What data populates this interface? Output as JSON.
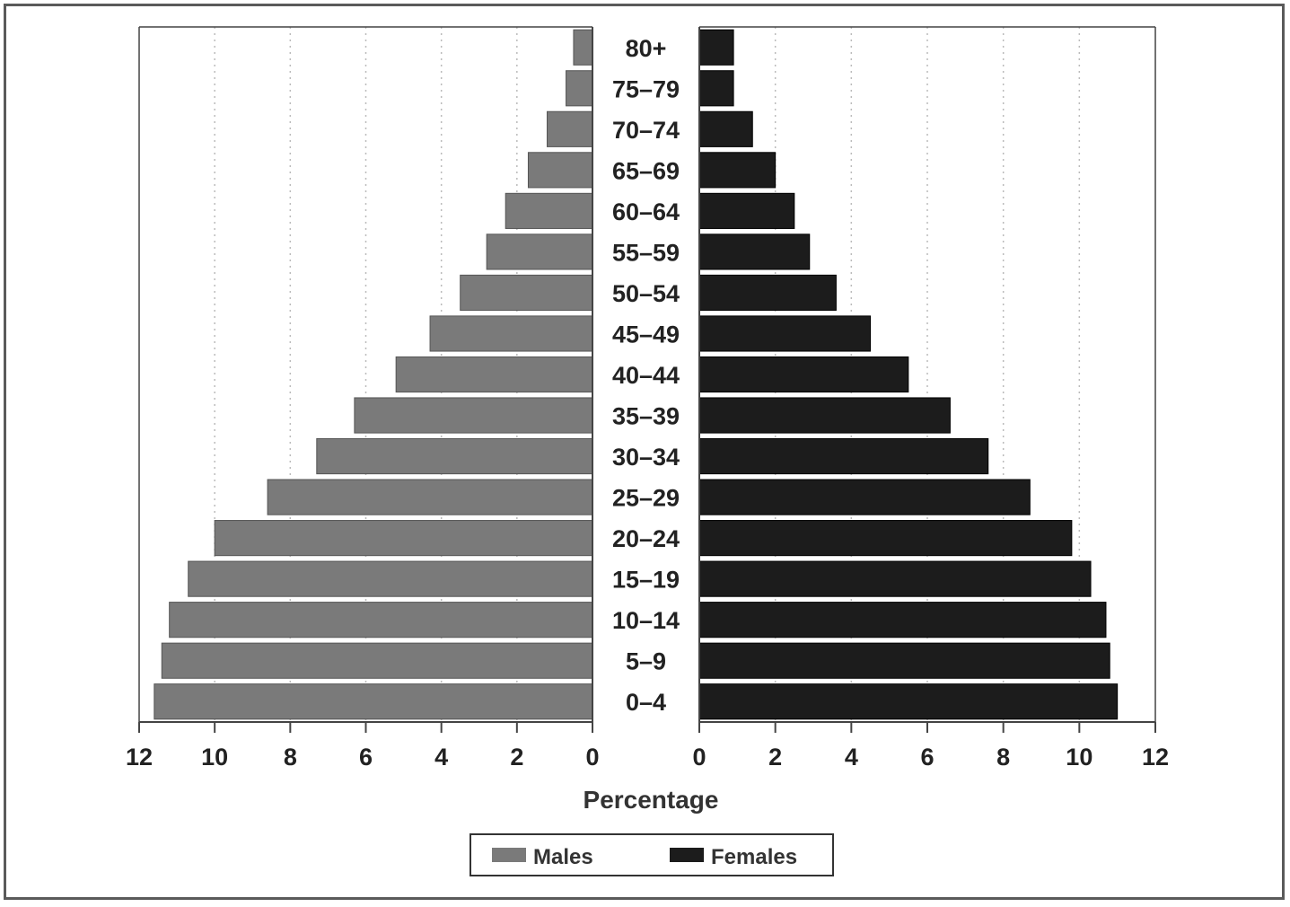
{
  "chart_data": {
    "type": "bar",
    "orientation": "horizontal",
    "style": "population-pyramid",
    "xlabel": "Percentage",
    "xlim": [
      0,
      12
    ],
    "x_ticks": [
      12,
      10,
      8,
      6,
      4,
      2,
      0
    ],
    "x_ticks_right": [
      0,
      2,
      4,
      6,
      8,
      10,
      12
    ],
    "grid": "vertical dotted",
    "legend_position": "bottom-center",
    "categories": [
      "80+",
      "75–79",
      "70–74",
      "65–69",
      "60–64",
      "55–59",
      "50–54",
      "45–49",
      "40–44",
      "35–39",
      "30–34",
      "25–29",
      "20–24",
      "15–19",
      "10–14",
      "5–9",
      "0–4"
    ],
    "series": [
      {
        "name": "Males",
        "color": "#7a7a7a",
        "values": [
          0.5,
          0.7,
          1.2,
          1.7,
          2.3,
          2.8,
          3.5,
          4.3,
          5.2,
          6.3,
          7.3,
          8.6,
          10.0,
          10.7,
          11.2,
          11.4,
          11.6
        ]
      },
      {
        "name": "Females",
        "color": "#1c1c1c",
        "values": [
          0.9,
          0.9,
          1.4,
          2.0,
          2.5,
          2.9,
          3.6,
          4.5,
          5.5,
          6.6,
          7.6,
          8.7,
          9.8,
          10.3,
          10.7,
          10.8,
          11.0
        ]
      }
    ]
  }
}
